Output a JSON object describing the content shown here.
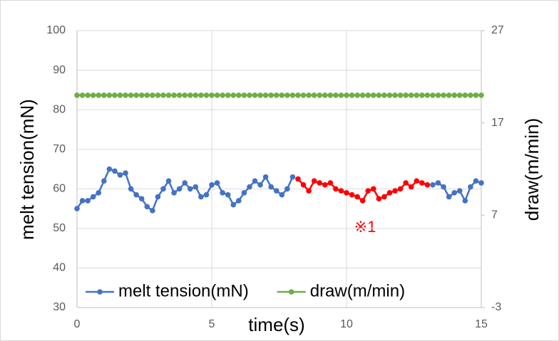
{
  "chart_data": {
    "type": "line",
    "xlabel": "time(s)",
    "ylabel": "melt tension(mN)",
    "y2label": "draw(m/min)",
    "annotation": "※1",
    "xlim": [
      0,
      15
    ],
    "xticks": [
      0,
      5,
      10,
      15
    ],
    "ylim": [
      30,
      100
    ],
    "yticks": [
      30,
      40,
      50,
      60,
      70,
      80,
      90,
      100
    ],
    "y2lim": [
      -3,
      27
    ],
    "y2ticks": [
      -3,
      7,
      17,
      27
    ],
    "grid": true,
    "series": [
      {
        "name": "melt tension(mN)",
        "color": "#4472c4",
        "x": [
          0,
          0.2,
          0.4,
          0.6,
          0.8,
          1,
          1.2,
          1.4,
          1.6,
          1.8,
          2,
          2.2,
          2.4,
          2.6,
          2.8,
          3,
          3.2,
          3.4,
          3.6,
          3.8,
          4,
          4.2,
          4.4,
          4.6,
          4.8,
          5,
          5.2,
          5.4,
          5.6,
          5.8,
          6,
          6.2,
          6.4,
          6.6,
          6.8,
          7,
          7.2,
          7.4,
          7.6,
          7.8,
          8,
          8.2,
          8.4,
          8.6,
          8.8,
          9,
          9.2,
          9.4,
          9.6,
          9.8,
          10,
          10.2,
          10.4,
          10.6,
          10.8,
          11,
          11.2,
          11.4,
          11.6,
          11.8,
          12,
          12.2,
          12.4,
          12.6,
          12.8,
          13,
          13.2,
          13.4,
          13.6,
          13.8,
          14,
          14.2,
          14.4,
          14.6,
          14.8,
          15
        ],
        "values": [
          55,
          57,
          57,
          58,
          59,
          62,
          65,
          64.5,
          63.5,
          64,
          60,
          58.5,
          57.5,
          55.5,
          54.5,
          58,
          60,
          62,
          59,
          60,
          61.5,
          60,
          60.5,
          58,
          58.5,
          61,
          61.5,
          59,
          58.5,
          56,
          57,
          59,
          60.5,
          62,
          61,
          63,
          60.5,
          59.5,
          58.5,
          60,
          63,
          null,
          null,
          null,
          null,
          null,
          null,
          null,
          null,
          null,
          null,
          null,
          null,
          null,
          null,
          null,
          null,
          null,
          null,
          null,
          null,
          null,
          null,
          null,
          null,
          null,
          61,
          61.5,
          60.5,
          58,
          59,
          59.5,
          57,
          60.5,
          62,
          61.5
        ]
      },
      {
        "color": "#ff0000",
        "x": [
          8.2,
          8.4,
          8.6,
          8.8,
          9,
          9.2,
          9.4,
          9.6,
          9.8,
          10,
          10.2,
          10.4,
          10.6,
          10.8,
          11,
          11.2,
          11.4,
          11.6,
          11.8,
          12,
          12.2,
          12.4,
          12.6,
          12.8,
          13
        ],
        "values": [
          62.5,
          61,
          59.5,
          62,
          61.5,
          61,
          61.5,
          60,
          59.5,
          59,
          58.5,
          58,
          57,
          59.5,
          60,
          57.5,
          58,
          59,
          59.5,
          60,
          61.5,
          60.5,
          62,
          61.5,
          61
        ]
      },
      {
        "name": "draw(m/min)",
        "color": "#70ad47",
        "axis": "y2",
        "x": [
          0,
          0.2,
          0.4,
          0.6,
          0.8,
          1,
          1.2,
          1.4,
          1.6,
          1.8,
          2,
          2.2,
          2.4,
          2.6,
          2.8,
          3,
          3.2,
          3.4,
          3.6,
          3.8,
          4,
          4.2,
          4.4,
          4.6,
          4.8,
          5,
          5.2,
          5.4,
          5.6,
          5.8,
          6,
          6.2,
          6.4,
          6.6,
          6.8,
          7,
          7.2,
          7.4,
          7.6,
          7.8,
          8,
          8.2,
          8.4,
          8.6,
          8.8,
          9,
          9.2,
          9.4,
          9.6,
          9.8,
          10,
          10.2,
          10.4,
          10.6,
          10.8,
          11,
          11.2,
          11.4,
          11.6,
          11.8,
          12,
          12.2,
          12.4,
          12.6,
          12.8,
          13,
          13.2,
          13.4,
          13.6,
          13.8,
          14,
          14.2,
          14.4,
          14.6,
          14.8,
          15
        ],
        "values": [
          20,
          20,
          20,
          20,
          20,
          20,
          20,
          20,
          20,
          20,
          20,
          20,
          20,
          20,
          20,
          20,
          20,
          20,
          20,
          20,
          20,
          20,
          20,
          20,
          20,
          20,
          20,
          20,
          20,
          20,
          20,
          20,
          20,
          20,
          20,
          20,
          20,
          20,
          20,
          20,
          20,
          20,
          20,
          20,
          20,
          20,
          20,
          20,
          20,
          20,
          20,
          20,
          20,
          20,
          20,
          20,
          20,
          20,
          20,
          20,
          20,
          20,
          20,
          20,
          20,
          20,
          20,
          20,
          20,
          20,
          20,
          20,
          20,
          20,
          20,
          20
        ]
      }
    ]
  }
}
